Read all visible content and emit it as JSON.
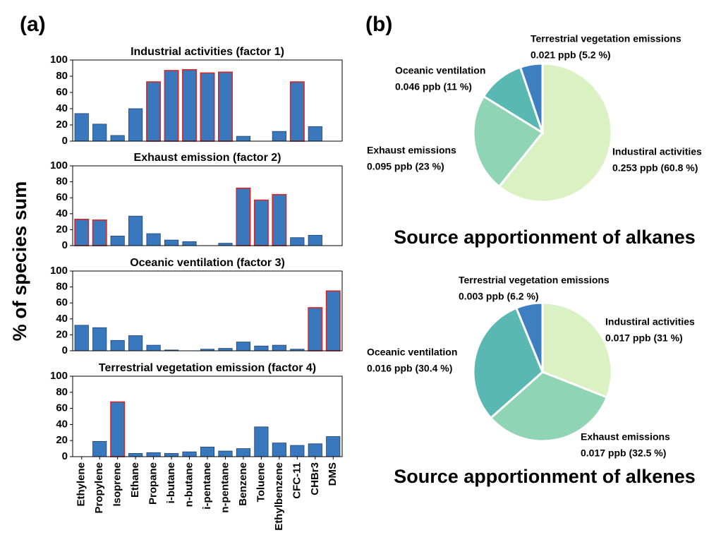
{
  "panel_labels": [
    "(a)",
    "(b)"
  ],
  "ylabel": "% of species sum",
  "chart_data": [
    {
      "type": "bar",
      "title": "Industrial activities (factor 1)",
      "color": "#3a78be",
      "edge_color": "#1f3f6e",
      "highlight_color": "#d62728",
      "values": [
        34,
        21,
        7,
        40,
        73,
        87,
        88,
        84,
        85,
        6,
        0,
        12,
        73,
        18,
        0
      ],
      "highlighted": [
        false,
        false,
        false,
        false,
        true,
        true,
        true,
        true,
        true,
        false,
        false,
        false,
        true,
        false,
        false
      ],
      "ylim": [
        0,
        100
      ],
      "yticks": [
        0,
        20,
        40,
        60,
        80,
        100
      ]
    },
    {
      "type": "bar",
      "title": "Exhaust emission (factor 2)",
      "color": "#3a78be",
      "edge_color": "#1f3f6e",
      "highlight_color": "#d62728",
      "values": [
        33,
        32,
        12,
        37,
        15,
        7,
        5,
        0,
        3,
        72,
        57,
        64,
        10,
        13,
        0
      ],
      "highlighted": [
        true,
        true,
        false,
        false,
        false,
        false,
        false,
        false,
        false,
        true,
        true,
        true,
        false,
        false,
        false
      ],
      "ylim": [
        0,
        100
      ],
      "yticks": [
        0,
        20,
        40,
        60,
        80,
        100
      ]
    },
    {
      "type": "bar",
      "title": "Oceanic ventilation (factor 3)",
      "color": "#3a78be",
      "edge_color": "#1f3f6e",
      "highlight_color": "#d62728",
      "values": [
        32,
        29,
        13,
        19,
        7,
        1,
        0,
        2,
        3,
        11,
        6,
        7,
        2,
        54,
        75
      ],
      "highlighted": [
        false,
        false,
        false,
        false,
        false,
        false,
        false,
        false,
        false,
        false,
        false,
        false,
        false,
        true,
        true
      ],
      "ylim": [
        0,
        100
      ],
      "yticks": [
        0,
        20,
        40,
        60,
        80,
        100
      ]
    },
    {
      "type": "bar",
      "title": "Terrestrial vegetation emission (factor 4)",
      "color": "#3a78be",
      "edge_color": "#1f3f6e",
      "highlight_color": "#d62728",
      "categories": [
        "Ethylene",
        "Propylene",
        "Isoprene",
        "Ethane",
        "Propane",
        "i-butane",
        "n-butane",
        "i-pentane",
        "n-pentane",
        "Benzene",
        "Toluene",
        "Ethylbenzene",
        "CFC-11",
        "CHBr3",
        "DMS"
      ],
      "values": [
        0,
        19,
        68,
        4,
        5,
        4,
        6,
        12,
        7,
        10,
        37,
        17,
        14,
        16,
        25
      ],
      "highlighted": [
        false,
        false,
        true,
        false,
        false,
        false,
        false,
        false,
        false,
        false,
        false,
        false,
        false,
        false,
        false
      ],
      "ylim": [
        0,
        100
      ],
      "yticks": [
        0,
        20,
        40,
        60,
        80,
        100
      ]
    },
    {
      "type": "pie",
      "title": "Source apportionment of alkanes",
      "categories": [
        "Industiral activities",
        "Exhaust emissions",
        "Oceanic ventilation",
        "Terrestrial vegetation emissions"
      ],
      "values": [
        60.8,
        23,
        11,
        5.2
      ],
      "value_labels": [
        "0.253 ppb (60.8 %)",
        "0.095 ppb (23 %)",
        "0.046 ppb (11 %)",
        "0.021 ppb (5.2 %)"
      ],
      "colors": [
        "#daf1c3",
        "#8fd4b5",
        "#5ab8b3",
        "#3d7fc0"
      ]
    },
    {
      "type": "pie",
      "title": "Source apportionment of alkenes",
      "categories": [
        "Industiral activities",
        "Exhaust emissions",
        "Oceanic ventilation",
        "Terrestrial vegetation emissions"
      ],
      "values": [
        31,
        32.5,
        30.4,
        6.2
      ],
      "value_labels": [
        "0.017 ppb (31 %)",
        "0.017 ppb (32.5 %)",
        "0.016 ppb (30.4 %)",
        "0.003 ppb (6.2 %)"
      ],
      "colors": [
        "#daf1c3",
        "#8fd4b5",
        "#5ab8b3",
        "#3d7fc0"
      ]
    }
  ]
}
